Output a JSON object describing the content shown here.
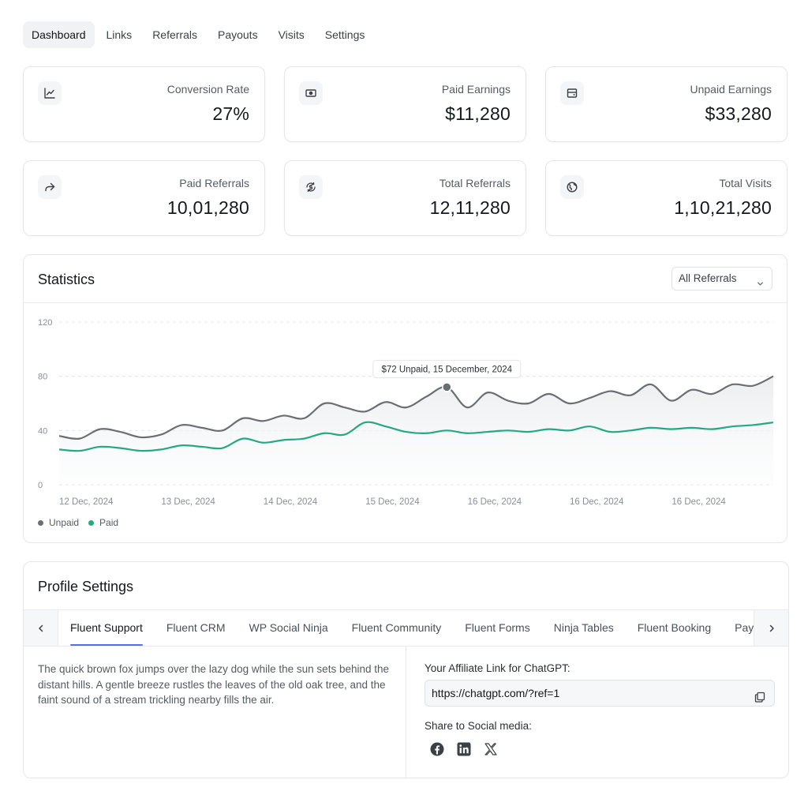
{
  "nav": {
    "items": [
      "Dashboard",
      "Links",
      "Referrals",
      "Payouts",
      "Visits",
      "Settings"
    ],
    "active": "Dashboard"
  },
  "stats": [
    {
      "label": "Conversion Rate",
      "value": "27%",
      "icon": "trend-chart-icon"
    },
    {
      "label": "Paid Earnings",
      "value": "$11,280",
      "icon": "cash-icon"
    },
    {
      "label": "Unpaid Earnings",
      "value": "$33,280",
      "icon": "wallet-icon"
    },
    {
      "label": "Paid Referrals",
      "value": "10,01,280",
      "icon": "share-arrow-icon"
    },
    {
      "label": "Total Referrals",
      "value": "12,11,280",
      "icon": "coin-exchange-icon"
    },
    {
      "label": "Total Visits",
      "value": "1,10,21,280",
      "icon": "globe-icon"
    }
  ],
  "statistics": {
    "title": "Statistics",
    "filter": "All Referrals",
    "tooltip": "$72 Unpaid, 15 December, 2024"
  },
  "chart_data": {
    "type": "line",
    "title": "Statistics",
    "ylim": [
      0,
      120
    ],
    "yticks": [
      "120",
      "80",
      "40",
      "0"
    ],
    "x_tick_labels": [
      "12 Dec, 2024",
      "13 Dec, 2024",
      "14 Dec, 2024",
      "15 Dec, 2024",
      "16 Dec, 2024",
      "16 Dec, 2024",
      "16 Dec, 2024"
    ],
    "series": [
      {
        "name": "Unpaid",
        "color": "#6b6e73",
        "values": [
          36,
          34,
          41,
          39,
          35,
          37,
          44,
          42,
          40,
          49,
          47,
          51,
          49,
          60,
          57,
          54,
          61,
          57,
          65,
          72,
          57,
          68,
          62,
          60,
          67,
          60,
          64,
          69,
          66,
          74,
          62,
          70,
          67,
          74,
          73,
          80
        ]
      },
      {
        "name": "Paid",
        "color": "#26a883",
        "values": [
          26,
          25,
          28,
          27,
          25,
          26,
          29,
          28,
          27,
          34,
          31,
          33,
          34,
          38,
          37,
          46,
          43,
          39,
          38,
          40,
          38,
          39,
          40,
          39,
          41,
          40,
          43,
          39,
          40,
          42,
          41,
          42,
          41,
          43,
          44,
          46
        ]
      }
    ],
    "highlight": {
      "series": "Unpaid",
      "value": 72,
      "date": "15 December, 2024"
    },
    "legend": [
      "Unpaid",
      "Paid"
    ]
  },
  "profile": {
    "title": "Profile Settings",
    "tabs": [
      "Fluent Support",
      "Fluent CRM",
      "WP Social Ninja",
      "Fluent Community",
      "Fluent Forms",
      "Ninja Tables",
      "Fluent Booking",
      "Paymattic"
    ],
    "active_tab": "Fluent Support",
    "description": "The quick brown fox jumps over the lazy dog while the sun sets behind the distant hills. A gentle breeze rustles the leaves of the old oak tree, and the faint sound of a stream trickling nearby fills the air.",
    "affiliate_label": "Your Affiliate Link for ChatGPT:",
    "affiliate_link": "https://chatgpt.com/?ref=1",
    "share_label": "Share to Social media:",
    "socials": [
      "facebook-icon",
      "linkedin-icon",
      "x-icon"
    ]
  },
  "colors": {
    "unpaid": "#6b6e73",
    "paid": "#26a883",
    "tab_accent": "#5b6ee8"
  }
}
